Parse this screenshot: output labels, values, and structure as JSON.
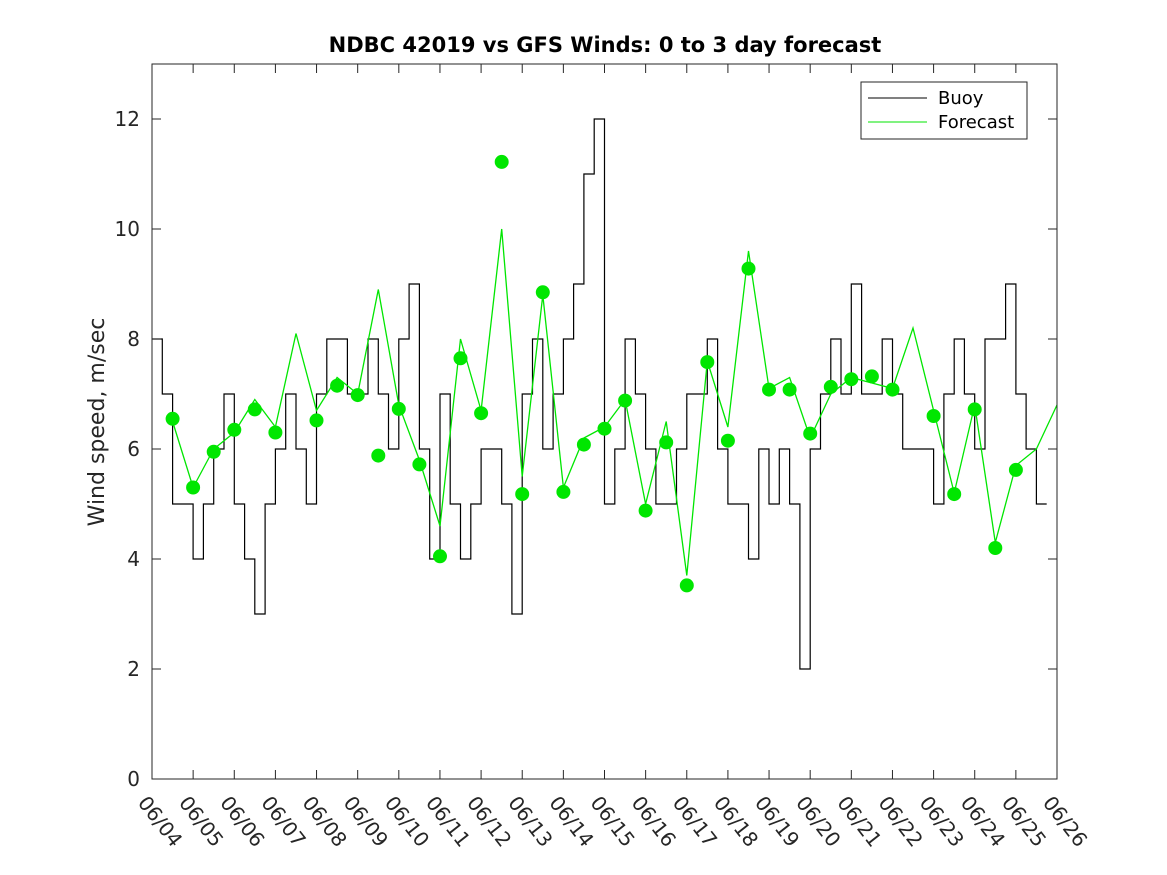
{
  "chart_data": {
    "type": "line",
    "title": "NDBC 42019 vs GFS Winds: 0 to 3 day forecast",
    "xlabel": "",
    "ylabel": "Wind speed, m/sec",
    "x_tick_labels": [
      "06/04",
      "06/05",
      "06/06",
      "06/07",
      "06/08",
      "06/09",
      "06/10",
      "06/11",
      "06/12",
      "06/13",
      "06/14",
      "06/15",
      "06/16",
      "06/17",
      "06/18",
      "06/19",
      "06/20",
      "06/21",
      "06/22",
      "06/23",
      "06/24",
      "06/25",
      "06/26"
    ],
    "y_ticks": [
      0,
      2,
      4,
      6,
      8,
      10,
      12
    ],
    "xlim": [
      "06/04",
      "06/26"
    ],
    "ylim": [
      0,
      13
    ],
    "grid": false,
    "legend_position": "top-right",
    "colors": {
      "buoy": "#000000",
      "forecast": "#00e600",
      "markers": "#00e600",
      "axes": "#262626"
    },
    "legend": [
      {
        "label": "Buoy",
        "color": "#000000"
      },
      {
        "label": "Forecast",
        "color": "#00e600"
      }
    ],
    "series": [
      {
        "name": "Buoy",
        "color": "#000000",
        "step": true,
        "x": [
          "06/04 00:00",
          "06/04 06:00",
          "06/04 12:00",
          "06/04 18:00",
          "06/05 00:00",
          "06/05 06:00",
          "06/05 12:00",
          "06/05 18:00",
          "06/06 00:00",
          "06/06 06:00",
          "06/06 12:00",
          "06/06 18:00",
          "06/07 00:00",
          "06/07 06:00",
          "06/07 12:00",
          "06/07 18:00",
          "06/08 00:00",
          "06/08 06:00",
          "06/08 12:00",
          "06/08 18:00",
          "06/09 00:00",
          "06/09 06:00",
          "06/09 12:00",
          "06/09 18:00",
          "06/10 00:00",
          "06/10 06:00",
          "06/10 12:00",
          "06/10 18:00",
          "06/11 00:00",
          "06/11 06:00",
          "06/11 12:00",
          "06/11 18:00",
          "06/12 00:00",
          "06/12 06:00",
          "06/12 12:00",
          "06/12 18:00",
          "06/13 00:00",
          "06/13 06:00",
          "06/13 12:00",
          "06/13 18:00",
          "06/14 00:00",
          "06/14 06:00",
          "06/14 12:00",
          "06/14 18:00",
          "06/15 00:00",
          "06/15 06:00",
          "06/15 12:00",
          "06/15 18:00",
          "06/16 00:00",
          "06/16 06:00",
          "06/16 12:00",
          "06/16 18:00",
          "06/17 00:00",
          "06/17 06:00",
          "06/17 12:00",
          "06/17 18:00",
          "06/18 00:00",
          "06/18 06:00",
          "06/18 12:00",
          "06/18 18:00",
          "06/19 00:00",
          "06/19 06:00",
          "06/19 12:00",
          "06/19 18:00",
          "06/20 00:00",
          "06/20 06:00",
          "06/20 12:00",
          "06/20 18:00",
          "06/21 00:00",
          "06/21 06:00",
          "06/21 12:00",
          "06/21 18:00",
          "06/22 00:00",
          "06/22 06:00",
          "06/22 12:00",
          "06/22 18:00",
          "06/23 00:00",
          "06/23 06:00",
          "06/23 12:00",
          "06/23 18:00",
          "06/24 00:00",
          "06/24 06:00",
          "06/24 12:00",
          "06/24 18:00",
          "06/25 00:00",
          "06/25 06:00",
          "06/25 12:00"
        ],
        "y": [
          8,
          7,
          5,
          5,
          4,
          5,
          6,
          7,
          5,
          4,
          3,
          5,
          6,
          7,
          6,
          5,
          7,
          8,
          8,
          7,
          7,
          8,
          7,
          6,
          8,
          9,
          6,
          4,
          7,
          5,
          4,
          5,
          6,
          6,
          5,
          3,
          7,
          8,
          6,
          7,
          8,
          9,
          11,
          12,
          5,
          6,
          8,
          7,
          6,
          5,
          5,
          6,
          7,
          7,
          8,
          6,
          5,
          5,
          4,
          6,
          5,
          6,
          5,
          2,
          6,
          7,
          8,
          7,
          9,
          7,
          7,
          8,
          7,
          6,
          6,
          6,
          5,
          7,
          8,
          7,
          6,
          8,
          8,
          9,
          7,
          6,
          5
        ]
      },
      {
        "name": "Forecast",
        "color": "#00e600",
        "x": [
          "06/04 12:00",
          "06/05 00:00",
          "06/05 12:00",
          "06/06 00:00",
          "06/06 12:00",
          "06/07 00:00",
          "06/07 12:00",
          "06/08 00:00",
          "06/08 12:00",
          "06/09 00:00",
          "06/09 12:00",
          "06/10 00:00",
          "06/10 12:00",
          "06/11 00:00",
          "06/11 12:00",
          "06/12 00:00",
          "06/12 12:00",
          "06/13 00:00",
          "06/13 12:00",
          "06/14 00:00",
          "06/14 12:00",
          "06/15 00:00",
          "06/15 12:00",
          "06/16 00:00",
          "06/16 12:00",
          "06/17 00:00",
          "06/17 12:00",
          "06/18 00:00",
          "06/18 12:00",
          "06/19 00:00",
          "06/19 12:00",
          "06/20 00:00",
          "06/20 12:00",
          "06/21 00:00",
          "06/21 12:00",
          "06/22 00:00",
          "06/22 12:00",
          "06/23 00:00",
          "06/23 12:00",
          "06/24 00:00",
          "06/24 12:00",
          "06/25 00:00",
          "06/25 12:00",
          "06/26 00:00"
        ],
        "y": [
          6.5,
          5.3,
          6.0,
          6.3,
          6.9,
          6.4,
          8.1,
          6.7,
          7.3,
          7.0,
          8.9,
          6.8,
          5.8,
          4.6,
          8.0,
          6.7,
          10.0,
          5.5,
          8.8,
          5.3,
          6.2,
          6.4,
          6.9,
          5.0,
          6.5,
          3.7,
          7.6,
          6.4,
          9.6,
          7.1,
          7.3,
          6.2,
          7.0,
          7.3,
          7.2,
          7.1,
          8.2,
          6.7,
          5.2,
          6.8,
          4.3,
          5.7,
          6.0,
          6.8
        ]
      },
      {
        "name": "Forecast verification points",
        "color": "#00e600",
        "marker": "circle",
        "x": [
          "06/04 12:00",
          "06/05 00:00",
          "06/05 12:00",
          "06/06 00:00",
          "06/06 12:00",
          "06/07 00:00",
          "06/08 00:00",
          "06/08 12:00",
          "06/09 00:00",
          "06/09 12:00",
          "06/10 00:00",
          "06/10 12:00",
          "06/11 00:00",
          "06/11 12:00",
          "06/12 00:00",
          "06/12 12:00",
          "06/13 00:00",
          "06/13 12:00",
          "06/14 00:00",
          "06/14 12:00",
          "06/15 00:00",
          "06/15 12:00",
          "06/16 00:00",
          "06/16 12:00",
          "06/17 00:00",
          "06/17 12:00",
          "06/18 00:00",
          "06/18 12:00",
          "06/19 00:00",
          "06/19 12:00",
          "06/20 00:00",
          "06/20 12:00",
          "06/21 00:00",
          "06/21 12:00",
          "06/22 00:00",
          "06/23 00:00",
          "06/23 12:00",
          "06/24 00:00",
          "06/24 12:00",
          "06/25 00:00"
        ],
        "y": [
          6.55,
          5.3,
          5.95,
          6.35,
          6.72,
          6.3,
          6.52,
          7.15,
          6.98,
          5.88,
          6.73,
          5.72,
          4.05,
          7.65,
          6.65,
          11.22,
          5.18,
          8.85,
          5.22,
          6.08,
          6.37,
          6.88,
          4.88,
          6.12,
          3.52,
          7.58,
          6.15,
          9.28,
          7.08,
          7.08,
          6.28,
          7.13,
          7.27,
          7.32,
          7.08,
          6.6,
          5.18,
          6.72,
          4.2,
          5.62
        ]
      }
    ]
  }
}
